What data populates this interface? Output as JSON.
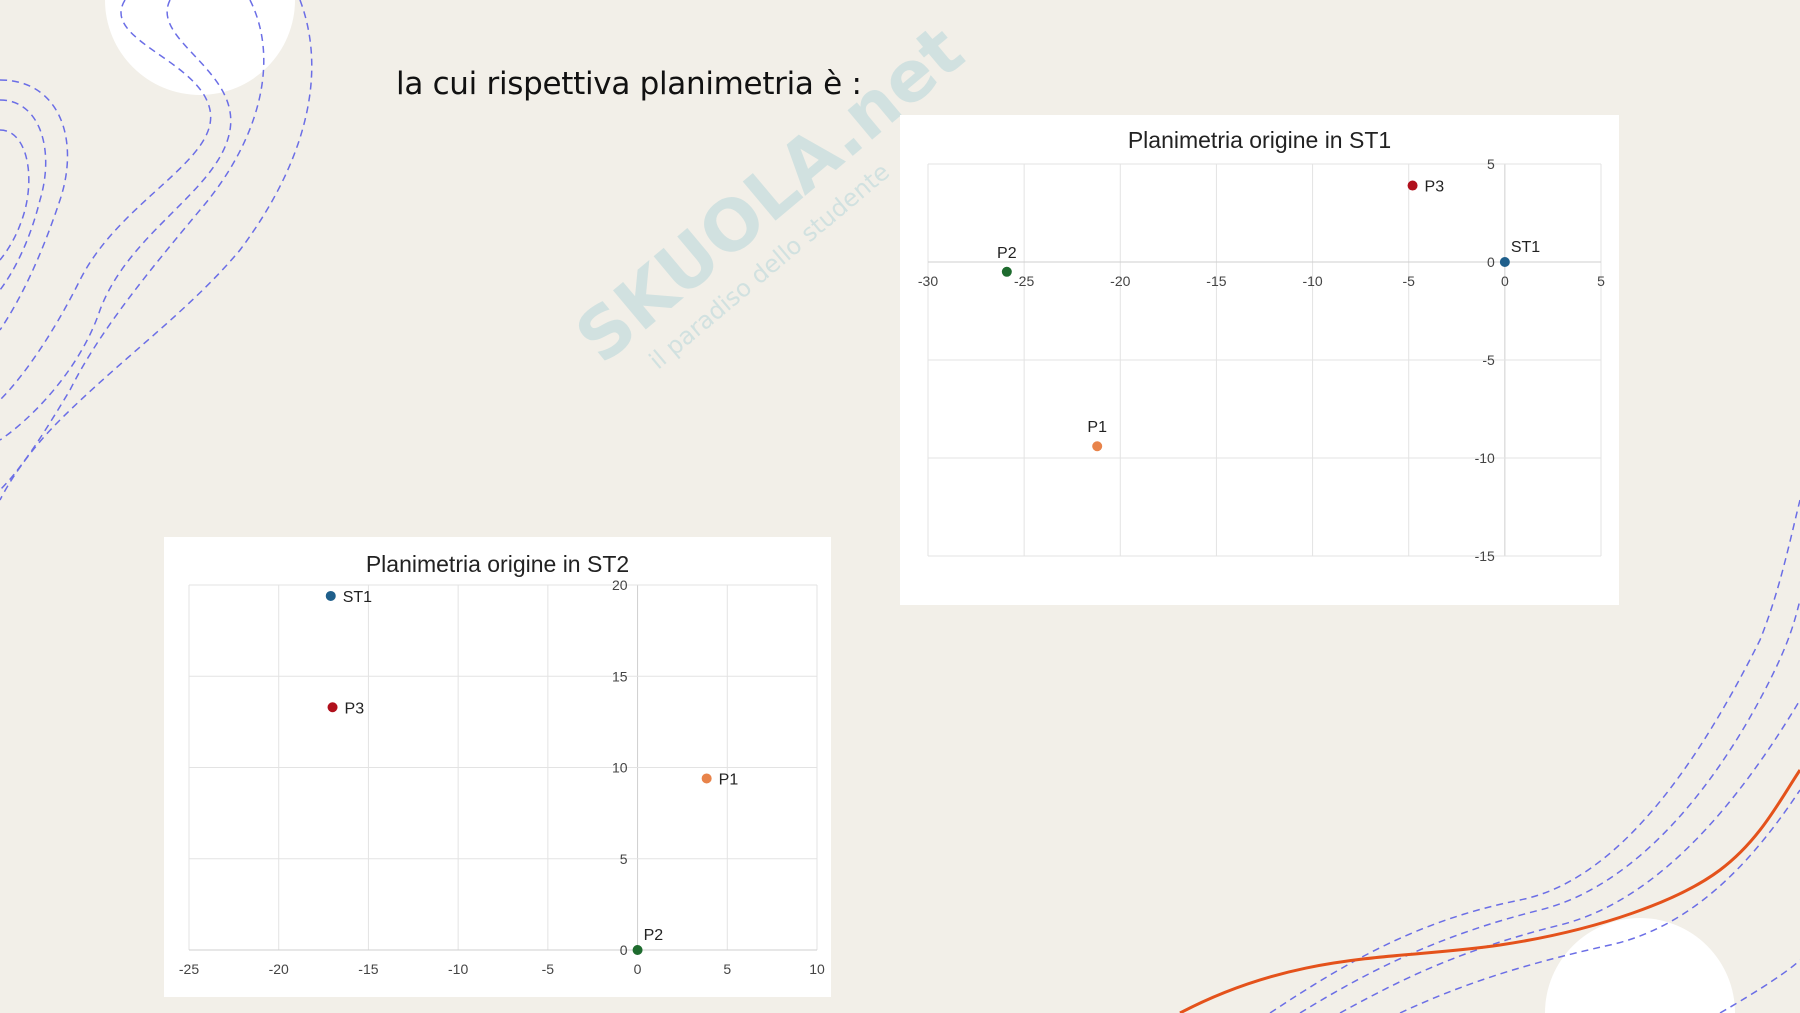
{
  "slide": {
    "heading": "la cui rispettiva planimetria è :",
    "watermark": {
      "brand": "Skuola.net",
      "tagline": "il paradiso dello studente"
    }
  },
  "colors": {
    "background": "#f2efe8",
    "dashed_lines": "#6b6ee6",
    "accent_curve": "#e4521b",
    "grid": "#e3e3e3"
  },
  "chart_data": [
    {
      "type": "scatter",
      "title": "Planimetria origine in ST1",
      "xlim": [
        -30,
        5
      ],
      "ylim": [
        -15,
        5
      ],
      "x_ticks": [
        -30,
        -25,
        -20,
        -15,
        -10,
        -5,
        0,
        5
      ],
      "y_ticks": [
        -15,
        -10,
        -5,
        0,
        5
      ],
      "grid": true,
      "points": [
        {
          "label": "ST1",
          "x": 0,
          "y": 0,
          "color": "#1f5f8b",
          "label_pos": "above-right"
        },
        {
          "label": "P1",
          "x": -21.2,
          "y": -9.4,
          "color": "#e8834a",
          "label_pos": "above"
        },
        {
          "label": "P2",
          "x": -25.9,
          "y": -0.5,
          "color": "#1e6b2e",
          "label_pos": "above"
        },
        {
          "label": "P3",
          "x": -4.8,
          "y": 3.9,
          "color": "#b0101c",
          "label_pos": "right"
        }
      ]
    },
    {
      "type": "scatter",
      "title": "Planimetria origine in ST2",
      "xlim": [
        -25,
        10
      ],
      "ylim": [
        0,
        20
      ],
      "x_ticks": [
        -25,
        -20,
        -15,
        -10,
        -5,
        0,
        5,
        10
      ],
      "y_ticks": [
        0,
        5,
        10,
        15,
        20
      ],
      "grid": true,
      "points": [
        {
          "label": "ST1",
          "x": -17.1,
          "y": 19.4,
          "color": "#1f5f8b",
          "label_pos": "right"
        },
        {
          "label": "P3",
          "x": -17.0,
          "y": 13.3,
          "color": "#b0101c",
          "label_pos": "right"
        },
        {
          "label": "P1",
          "x": 3.85,
          "y": 9.4,
          "color": "#e8834a",
          "label_pos": "right"
        },
        {
          "label": "P2",
          "x": 0,
          "y": 0,
          "color": "#1e6b2e",
          "label_pos": "above-right"
        }
      ]
    }
  ]
}
